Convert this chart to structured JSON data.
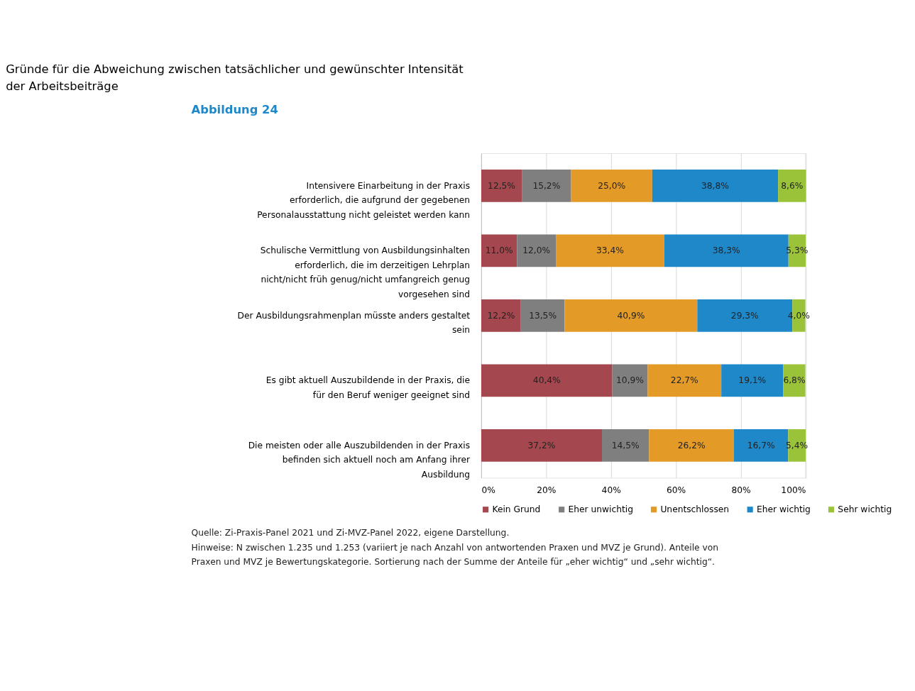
{
  "chart_data": {
    "type": "bar",
    "orientation": "horizontal",
    "stacked": true,
    "title": "Gründe für die Abweichung zwischen tatsächlicher und gewünschter Intensität der Arbeitsbeiträge",
    "categories": [
      "Intensivere Einarbeitung in der Praxis erforderlich, die aufgrund der gegebenen Personalausstattung nicht geleistet werden kann",
      "Schulische Vermittlung von Ausbildungsinhalten erforderlich, die im derzeitigen Lehrplan nicht/nicht früh genug/nicht umfangreich genug vorgesehen sind",
      "Der Ausbildungsrahmenplan müsste anders gestaltet sein",
      "Es gibt aktuell Auszubildende in der Praxis, die für den Beruf weniger geeignet sind",
      "Die meisten oder alle Auszubildenden in der Praxis befinden sich aktuell noch am Anfang ihrer Ausbildung"
    ],
    "series": [
      {
        "name": "Kein Grund",
        "color": "#a5474e",
        "values": [
          12.5,
          11.0,
          12.2,
          40.4,
          37.2
        ],
        "value_labels": [
          "12,5%",
          "11,0%",
          "12,2%",
          "40,4%",
          "37,2%"
        ]
      },
      {
        "name": "Eher unwichtig",
        "color": "#7f7f7f",
        "values": [
          15.2,
          12.0,
          13.5,
          10.9,
          14.5
        ],
        "value_labels": [
          "15,2%",
          "12,0%",
          "13,5%",
          "10,9%",
          "14,5%"
        ]
      },
      {
        "name": "Unentschlossen",
        "color": "#e39a26",
        "values": [
          25.0,
          33.4,
          40.9,
          22.7,
          26.2
        ],
        "value_labels": [
          "25,0%",
          "33,4%",
          "40,9%",
          "22,7%",
          "26,2%"
        ]
      },
      {
        "name": "Eher wichtig",
        "color": "#1f88c9",
        "values": [
          38.8,
          38.3,
          29.3,
          19.1,
          16.7
        ],
        "value_labels": [
          "38,8%",
          "38,3%",
          "29,3%",
          "19,1%",
          "16,7%"
        ]
      },
      {
        "name": "Sehr wichtig",
        "color": "#9bc33a",
        "values": [
          8.6,
          5.3,
          4.0,
          6.8,
          5.4
        ],
        "value_labels": [
          "8,6%",
          "5,3%",
          "4,0%",
          "6,8%",
          "5,4%"
        ]
      }
    ],
    "xlim": [
      0,
      100.1
    ],
    "xticks": [
      {
        "value": 0,
        "label": "0%"
      },
      {
        "value": 20,
        "label": "20%"
      },
      {
        "value": 40,
        "label": "40%"
      },
      {
        "value": 60,
        "label": "60%"
      },
      {
        "value": 80,
        "label": "80%"
      },
      {
        "value": 100,
        "label": "100%"
      }
    ],
    "grid": "x",
    "legend": "bottom",
    "annotations": [
      "Abbildung 24",
      "Quelle: Zi-Praxis-Panel 2021 und Zi-MVZ-Panel 2022, eigene Darstellung.",
      "Hinweise: N zwischen 1.235 und 1.253 (variiert je nach Anzahl von antwortenden Praxen und MVZ je Grund). Anteile von Praxen und MVZ je Bewertungskategorie. Sortierung nach der Summe der Anteile für „eher wichtig“ und „sehr wichtig“."
    ]
  }
}
